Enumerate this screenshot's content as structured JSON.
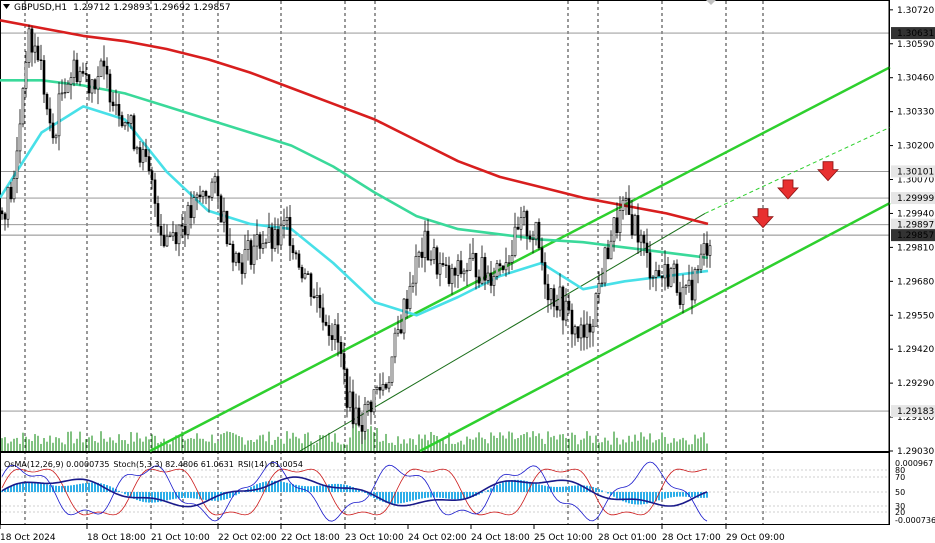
{
  "header": {
    "symbol_timeframe": "GBPUSD,H1",
    "ohlc": "1.29712 1.29893 1.29692 1.29857"
  },
  "indicator_header": {
    "osma": "OsMA(12,26,9) 0.0000735",
    "stoch": "Stoch(5,3,3) 82.4806 61.0631",
    "rsi": "RSI(14) 61.0054"
  },
  "colors": {
    "ma_red": "#d81e1e",
    "ma_green": "#3ad99a",
    "ma_cyan": "#48e0e8",
    "channel": "#2ed02e",
    "arrow": "#e83030",
    "volume": "#2e9a2e",
    "osma_bars": "#2eaee8",
    "stoch_main": "#1a1acc",
    "rsi_line": "#1a1a8a",
    "stoch_signal": "#cc1a1a"
  },
  "chart_data": {
    "type": "candlestick",
    "symbol": "GBPUSD",
    "timeframe": "H1",
    "ylim": [
      1.2903,
      1.3075
    ],
    "price_axis_ticks": [
      "1.30720",
      "1.30590",
      "1.30460",
      "1.30330",
      "1.30200",
      "1.30070",
      "1.29940",
      "1.29810",
      "1.29680",
      "1.29550",
      "1.29420",
      "1.29290",
      "1.29160",
      "1.29030"
    ],
    "highlighted_levels": [
      {
        "value": 1.30631,
        "label": "1.30631",
        "style": "dark"
      },
      {
        "value": 1.30101,
        "label": "1.30101",
        "style": "light"
      },
      {
        "value": 1.29999,
        "label": "1.29999",
        "style": "light"
      },
      {
        "value": 1.29897,
        "label": "1.29897",
        "style": "light"
      },
      {
        "value": 1.29857,
        "label": "1.29857",
        "style": "dark"
      },
      {
        "value": 1.29183,
        "label": "1.29183",
        "style": "light"
      }
    ],
    "x_labels": [
      "18 Oct 2024",
      "18 Oct 18:00",
      "21 Oct 10:00",
      "22 Oct 02:00",
      "22 Oct 18:00",
      "23 Oct 10:00",
      "24 Oct 02:00",
      "24 Oct 18:00",
      "25 Oct 10:00",
      "28 Oct 01:00",
      "28 Oct 17:00",
      "29 Oct 09:00"
    ],
    "close_path": [
      [
        0,
        1.2995
      ],
      [
        1,
        1.3005
      ],
      [
        2,
        1.306
      ],
      [
        3,
        1.3055
      ],
      [
        4,
        1.302
      ],
      [
        5,
        1.3045
      ],
      [
        6,
        1.305
      ],
      [
        7,
        1.3045
      ],
      [
        8,
        1.3048
      ],
      [
        9,
        1.304
      ],
      [
        10,
        1.303
      ],
      [
        11,
        1.302
      ],
      [
        12,
        1.3005
      ],
      [
        13,
        1.2985
      ],
      [
        14,
        1.2988
      ],
      [
        15,
        1.2992
      ],
      [
        16,
        1.3
      ],
      [
        17,
        1.3005
      ],
      [
        18,
        1.299
      ],
      [
        19,
        1.2975
      ],
      [
        20,
        1.298
      ],
      [
        21,
        1.2985
      ],
      [
        22,
        1.2982
      ],
      [
        23,
        1.299
      ],
      [
        24,
        1.2975
      ],
      [
        25,
        1.2965
      ],
      [
        26,
        1.2955
      ],
      [
        27,
        1.2945
      ],
      [
        28,
        1.292
      ],
      [
        29,
        1.2915
      ],
      [
        30,
        1.2925
      ],
      [
        31,
        1.293
      ],
      [
        32,
        1.295
      ],
      [
        33,
        1.297
      ],
      [
        34,
        1.2982
      ],
      [
        35,
        1.2975
      ],
      [
        36,
        1.2968
      ],
      [
        37,
        1.2972
      ],
      [
        38,
        1.2975
      ],
      [
        39,
        1.297
      ],
      [
        40,
        1.2975
      ],
      [
        41,
        1.298
      ],
      [
        42,
        1.299
      ],
      [
        43,
        1.2985
      ],
      [
        44,
        1.2965
      ],
      [
        45,
        1.296
      ],
      [
        46,
        1.295
      ],
      [
        47,
        1.2945
      ],
      [
        48,
        1.2965
      ],
      [
        49,
        1.2985
      ],
      [
        50,
        1.2995
      ],
      [
        51,
        1.299
      ],
      [
        52,
        1.2975
      ],
      [
        53,
        1.297
      ],
      [
        54,
        1.2972
      ],
      [
        55,
        1.296
      ],
      [
        56,
        1.2972
      ],
      [
        57,
        1.2986
      ]
    ],
    "moving_averages": [
      {
        "color_key": "ma_red",
        "values": [
          1.3068,
          1.3065,
          1.3062,
          1.306,
          1.3057,
          1.3053,
          1.3048,
          1.3042,
          1.3036,
          1.303,
          1.3022,
          1.3014,
          1.3008,
          1.3004,
          1.3,
          1.2997,
          1.2994,
          1.299
        ]
      },
      {
        "color_key": "ma_green",
        "values": [
          1.3045,
          1.3045,
          1.3043,
          1.304,
          1.3035,
          1.303,
          1.3025,
          1.302,
          1.3012,
          1.3002,
          1.2993,
          1.2988,
          1.2986,
          1.2984,
          1.2983,
          1.2981,
          1.2979,
          1.2977
        ]
      },
      {
        "color_key": "ma_cyan",
        "values": [
          1.3,
          1.3025,
          1.3035,
          1.303,
          1.301,
          1.2995,
          1.299,
          1.2988,
          1.2975,
          1.296,
          1.2955,
          1.2962,
          1.297,
          1.2975,
          1.2965,
          1.2968,
          1.297,
          1.2972
        ]
      }
    ],
    "channel": {
      "upper": [
        [
          150,
          1.2903
        ],
        [
          890,
          1.305
        ]
      ],
      "lower": [
        [
          420,
          1.2903
        ],
        [
          890,
          1.2998
        ]
      ],
      "mid_solid": [
        [
          300,
          1.2903
        ],
        [
          705,
          1.2994
        ]
      ],
      "mid_dashed": [
        [
          705,
          1.2994
        ],
        [
          890,
          1.3027
        ]
      ]
    },
    "sell_arrows": [
      {
        "x": 763,
        "price": 1.2992
      },
      {
        "x": 788,
        "price": 1.3003
      },
      {
        "x": 828,
        "price": 1.301
      }
    ],
    "indicator_axis_labels": [
      "0.000967",
      "80",
      "70",
      "50",
      "30",
      "20",
      "-0.000736"
    ]
  }
}
